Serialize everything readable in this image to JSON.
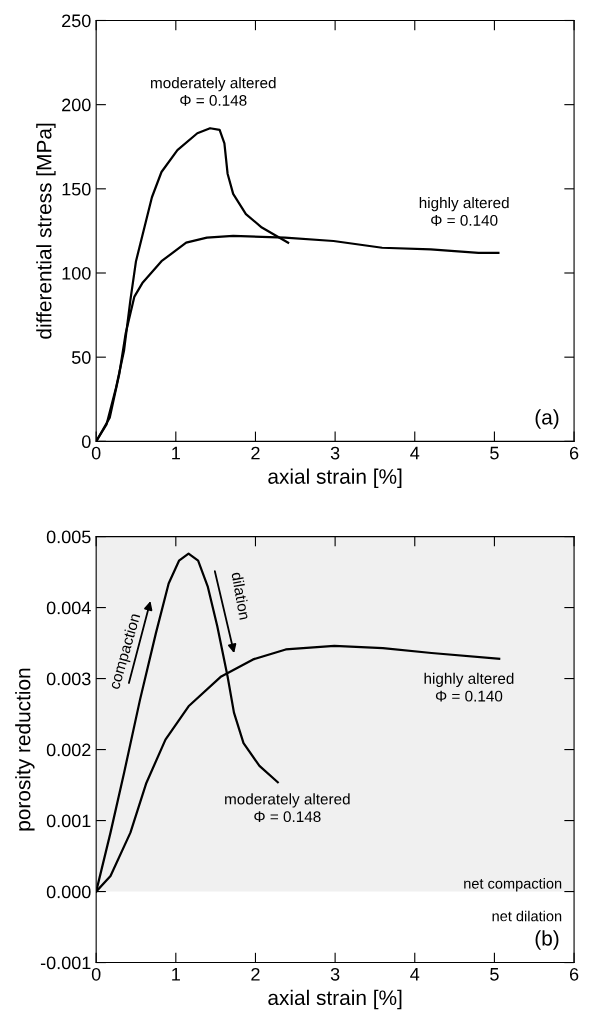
{
  "chart_data": [
    {
      "type": "line",
      "xlabel": "axial strain [%]",
      "ylabel": "differential stress [MPa]",
      "xlim": [
        0,
        6
      ],
      "ylim": [
        0,
        250
      ],
      "xticks": [
        0,
        1,
        2,
        3,
        4,
        5,
        6
      ],
      "yticks": [
        0,
        50,
        100,
        150,
        200,
        250
      ],
      "grid": false,
      "legend": false,
      "marker": "none",
      "line_style": "solid",
      "series": [
        {
          "color": "#000000",
          "x": [
            0,
            0.13,
            0.25,
            0.35,
            0.43,
            0.5,
            0.7,
            0.82,
            1.02,
            1.27,
            1.43,
            1.55,
            1.61,
            1.65,
            1.72,
            1.88,
            2.08,
            2.41
          ],
          "values": [
            0,
            10,
            32,
            54,
            84,
            107,
            145,
            160,
            173,
            183,
            186,
            185,
            177,
            159,
            147,
            135,
            127,
            118
          ]
        },
        {
          "color": "#000000",
          "x": [
            0,
            0.17,
            0.29,
            0.37,
            0.48,
            0.58,
            0.82,
            1.13,
            1.39,
            1.72,
            2.37,
            2.98,
            3.59,
            4.2,
            4.8,
            5.05
          ],
          "values": [
            0,
            14,
            40,
            64,
            86,
            94,
            107,
            118,
            121,
            122,
            121,
            119,
            115,
            114,
            112,
            112
          ]
        }
      ],
      "annotations": [
        "moderately altered\nΦ = 0.148",
        "highly altered\nΦ = 0.140",
        "(a)"
      ]
    },
    {
      "type": "line",
      "xlabel": "axial strain [%]",
      "ylabel": "porosity reduction",
      "xlim": [
        0,
        6
      ],
      "ylim": [
        -0.001,
        0.005
      ],
      "xticks": [
        0,
        1,
        2,
        3,
        4,
        5,
        6
      ],
      "yticks": [
        {
          "value": -0.001,
          "label": "-0.001"
        },
        {
          "value": 0,
          "label": "0.000"
        },
        {
          "value": 0.001,
          "label": "0.001"
        },
        {
          "value": 0.002,
          "label": "0.002"
        },
        {
          "value": 0.003,
          "label": "0.003"
        },
        {
          "value": 0.004,
          "label": "0.004"
        },
        {
          "value": 0.005,
          "label": "0.005"
        }
      ],
      "grid": false,
      "legend": false,
      "marker": "none",
      "line_style": "solid",
      "bands": [
        {
          "axis": "y",
          "from": 0,
          "to": 0.005,
          "label": "net compaction",
          "color": "#f0f0f0"
        }
      ],
      "series": [
        {
          "color": "#000000",
          "x": [
            0,
            0.18,
            0.35,
            0.55,
            0.75,
            0.91,
            1.04,
            1.16,
            1.28,
            1.4,
            1.52,
            1.65,
            1.73,
            1.85,
            2.05,
            2.28
          ],
          "values": [
            0,
            0.00083,
            0.00167,
            0.0027,
            0.00364,
            0.00434,
            0.00466,
            0.00476,
            0.00466,
            0.0043,
            0.00374,
            0.00303,
            0.00252,
            0.00209,
            0.00177,
            0.00154
          ]
        },
        {
          "color": "#000000",
          "x": [
            0,
            0.18,
            0.43,
            0.63,
            0.87,
            1.16,
            1.57,
            1.97,
            2.38,
            2.99,
            3.6,
            4.21,
            5.06
          ],
          "values": [
            0,
            0.00022,
            0.00083,
            0.00153,
            0.00214,
            0.00261,
            0.00303,
            0.00327,
            0.00341,
            0.00346,
            0.00343,
            0.00336,
            0.00328
          ]
        }
      ],
      "annotations": [
        "moderately altered\nΦ = 0.148",
        "highly altered\nΦ = 0.140",
        "compaction",
        "dilation",
        "net dilation",
        "(b)"
      ]
    }
  ]
}
